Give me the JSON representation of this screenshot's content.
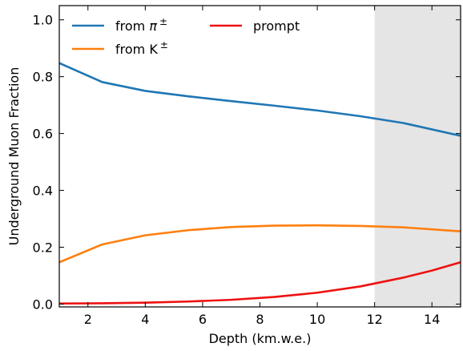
{
  "chart_data": {
    "type": "line",
    "xlabel": "Depth (km.w.e.)",
    "ylabel": "Underground Muon Fraction",
    "xlim": [
      1,
      15
    ],
    "ylim": [
      -0.01,
      1.05
    ],
    "xticks": [
      2,
      4,
      6,
      8,
      10,
      12,
      14
    ],
    "yticks": [
      0.0,
      0.2,
      0.4,
      0.6,
      0.8,
      1.0
    ],
    "xtick_labels": [
      "2",
      "4",
      "6",
      "8",
      "10",
      "12",
      "14"
    ],
    "ytick_labels": [
      "0.0",
      "0.2",
      "0.4",
      "0.6",
      "0.8",
      "1.0"
    ],
    "grid": false,
    "legend_placement": "top-left, two columns",
    "shaded_region": {
      "x_start": 12,
      "x_end": 15,
      "color": "#e5e5e5"
    },
    "series": [
      {
        "name": "from π±",
        "legend_main": "from ",
        "legend_symbol": "π",
        "legend_sup": "±",
        "color": "#1f77b4",
        "x": [
          1.0,
          2.5,
          4.0,
          5.5,
          7.0,
          8.5,
          10.0,
          11.5,
          13.0,
          15.0
        ],
        "values": [
          0.848,
          0.781,
          0.75,
          0.731,
          0.714,
          0.698,
          0.681,
          0.661,
          0.637,
          0.592
        ]
      },
      {
        "name": "from K±",
        "legend_main": "from K",
        "legend_symbol": "",
        "legend_sup": "±",
        "color": "#ff7f0e",
        "x": [
          1.0,
          2.5,
          4.0,
          5.5,
          7.0,
          8.5,
          10.0,
          11.5,
          13.0,
          15.0
        ],
        "values": [
          0.147,
          0.21,
          0.242,
          0.26,
          0.271,
          0.276,
          0.277,
          0.275,
          0.27,
          0.256
        ]
      },
      {
        "name": "prompt",
        "legend_main": "prompt",
        "legend_symbol": "",
        "legend_sup": "",
        "color": "#ee1111",
        "x": [
          1.0,
          2.5,
          4.0,
          5.5,
          7.0,
          8.5,
          10.0,
          11.5,
          13.0,
          14.0,
          15.0
        ],
        "values": [
          0.002,
          0.003,
          0.005,
          0.009,
          0.015,
          0.025,
          0.04,
          0.062,
          0.093,
          0.118,
          0.147
        ]
      }
    ]
  }
}
